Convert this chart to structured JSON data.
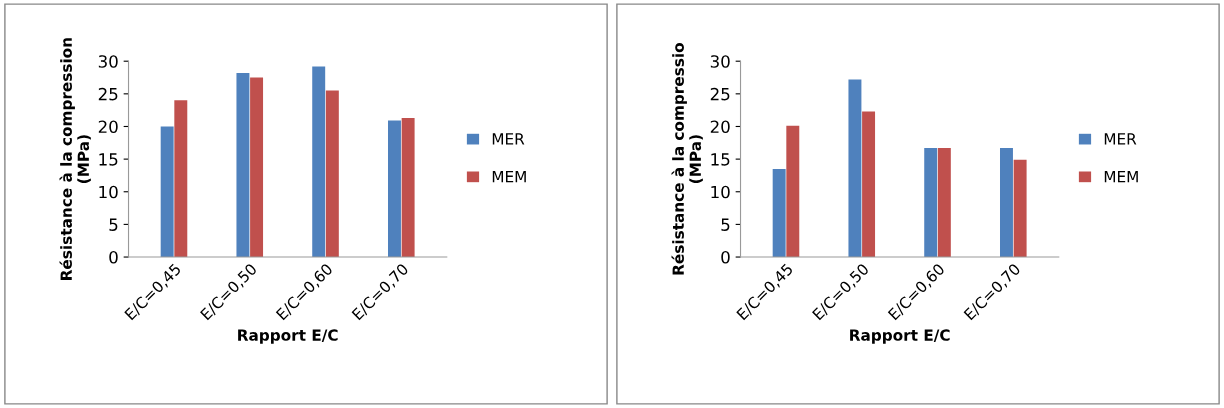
{
  "chart_data": [
    {
      "type": "bar",
      "xlabel": "Rapport E/C",
      "ylabel": "Résistance à la compression\n(MPa)",
      "categories": [
        "E/C=0,45",
        "E/C=0,50",
        "E/C=0,60",
        "E/C=0,70"
      ],
      "ylim": [
        0,
        30
      ],
      "yticks": [
        0,
        5,
        10,
        15,
        20,
        25,
        30
      ],
      "grid": false,
      "legend": "right",
      "series": [
        {
          "name": "MER",
          "color": "#4f81bd",
          "values": [
            20,
            28.2,
            29.2,
            20.9
          ]
        },
        {
          "name": "MEM",
          "color": "#c0504d",
          "values": [
            24,
            27.5,
            25.5,
            21.3
          ]
        }
      ]
    },
    {
      "type": "bar",
      "xlabel": "Rapport E/C",
      "ylabel": "Résistance à la compressio\n(MPa)",
      "categories": [
        "E/C=0,45",
        "E/C=0,50",
        "E/C=0,60",
        "E/C=0,70"
      ],
      "ylim": [
        0,
        30
      ],
      "yticks": [
        0,
        5,
        10,
        15,
        20,
        25,
        30
      ],
      "grid": false,
      "legend": "right",
      "series": [
        {
          "name": "MER",
          "color": "#4f81bd",
          "values": [
            13.5,
            27.2,
            16.7,
            16.7
          ]
        },
        {
          "name": "MEM",
          "color": "#c0504d",
          "values": [
            20.1,
            22.3,
            16.7,
            14.9
          ]
        }
      ]
    }
  ]
}
